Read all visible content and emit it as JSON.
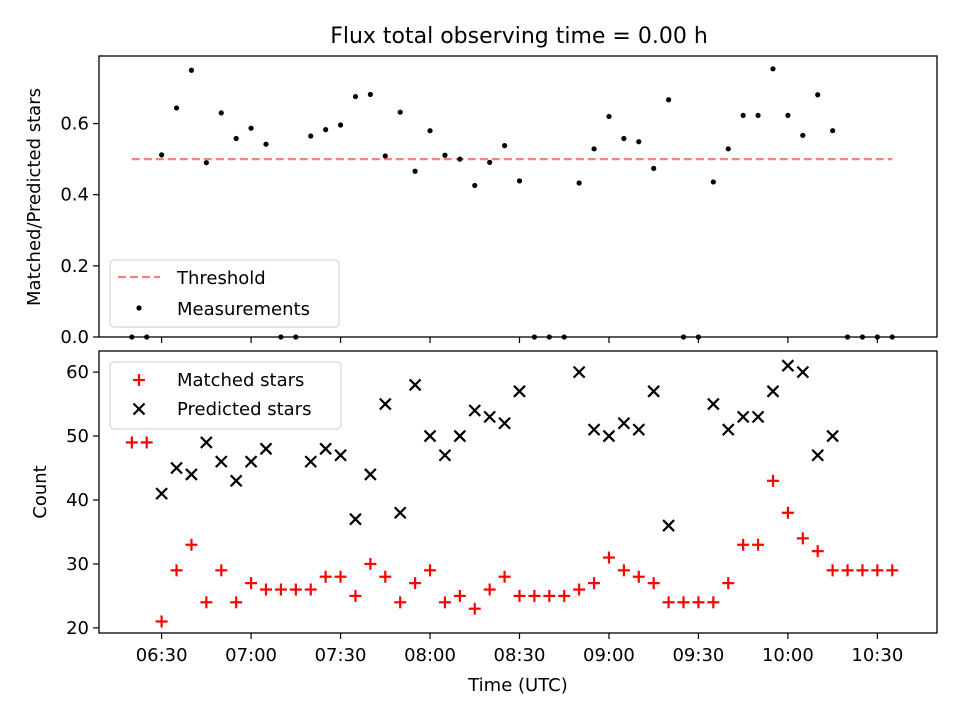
{
  "figure": {
    "title": "Flux total observing time = 0.00 h"
  },
  "colors": {
    "threshold": "#ff7f7f",
    "measurement": "#000000",
    "matched": "#ff0000",
    "predicted": "#000000"
  },
  "chart_data": [
    {
      "type": "scatter",
      "panel": "top",
      "title": "Flux total observing time = 0.00 h",
      "xlabel": "",
      "ylabel": "Matched/Predicted stars",
      "xlim": [
        "06:09",
        "10:50"
      ],
      "ylim": [
        0,
        0.79
      ],
      "yticks": [
        0.0,
        0.2,
        0.4,
        0.6
      ],
      "ytick_labels": [
        "0.0",
        "0.2",
        "0.4",
        "0.6"
      ],
      "legend_placement": "lower left",
      "series": [
        {
          "name": "Threshold",
          "kind": "dashed-line",
          "x": [
            "06:20",
            "10:35"
          ],
          "y": [
            0.5,
            0.5
          ]
        },
        {
          "name": "Measurements",
          "kind": "dots",
          "x": [
            "06:20",
            "06:25",
            "06:30",
            "06:35",
            "06:40",
            "06:45",
            "06:50",
            "06:55",
            "07:00",
            "07:05",
            "07:10",
            "07:15",
            "07:20",
            "07:25",
            "07:30",
            "07:35",
            "07:40",
            "07:45",
            "07:50",
            "07:55",
            "08:00",
            "08:05",
            "08:10",
            "08:15",
            "08:20",
            "08:25",
            "08:30",
            "08:35",
            "08:40",
            "08:45",
            "08:50",
            "08:55",
            "09:00",
            "09:05",
            "09:10",
            "09:15",
            "09:20",
            "09:25",
            "09:30",
            "09:35",
            "09:40",
            "09:45",
            "09:50",
            "09:55",
            "10:00",
            "10:05",
            "10:10",
            "10:15",
            "10:20",
            "10:25",
            "10:30",
            "10:35"
          ],
          "y": [
            0.0,
            0.0,
            0.512,
            0.644,
            0.75,
            0.49,
            0.63,
            0.558,
            0.587,
            0.542,
            0.0,
            0.0,
            0.565,
            0.583,
            0.596,
            0.676,
            0.682,
            0.509,
            0.632,
            0.466,
            0.58,
            0.511,
            0.5,
            0.426,
            0.491,
            0.538,
            0.439,
            0.0,
            0.0,
            0.0,
            0.433,
            0.529,
            0.62,
            0.558,
            0.549,
            0.474,
            0.667,
            0.0,
            0.0,
            0.436,
            0.529,
            0.623,
            0.623,
            0.754,
            0.623,
            0.567,
            0.681,
            0.58,
            0.0,
            0.0,
            0.0,
            0.0
          ]
        }
      ]
    },
    {
      "type": "scatter",
      "panel": "bottom",
      "xlabel": "Time (UTC)",
      "ylabel": "Count",
      "xlim": [
        "06:09",
        "10:50"
      ],
      "ylim": [
        19.2,
        63.3
      ],
      "xticks": [
        "06:30",
        "07:00",
        "07:30",
        "08:00",
        "08:30",
        "09:00",
        "09:30",
        "10:00",
        "10:30"
      ],
      "yticks": [
        20,
        30,
        40,
        50,
        60
      ],
      "legend_placement": "upper left",
      "series": [
        {
          "name": "Matched stars",
          "marker": "+",
          "x": [
            "06:20",
            "06:25",
            "06:30",
            "06:35",
            "06:40",
            "06:45",
            "06:50",
            "06:55",
            "07:00",
            "07:05",
            "07:10",
            "07:15",
            "07:20",
            "07:25",
            "07:30",
            "07:35",
            "07:40",
            "07:45",
            "07:50",
            "07:55",
            "08:00",
            "08:05",
            "08:10",
            "08:15",
            "08:20",
            "08:25",
            "08:30",
            "08:35",
            "08:40",
            "08:45",
            "08:50",
            "08:55",
            "09:00",
            "09:05",
            "09:10",
            "09:15",
            "09:20",
            "09:25",
            "09:30",
            "09:35",
            "09:40",
            "09:45",
            "09:50",
            "09:55",
            "10:00",
            "10:05",
            "10:10",
            "10:15",
            "10:20",
            "10:25",
            "10:30",
            "10:35"
          ],
          "y": [
            49,
            49,
            21,
            29,
            33,
            24,
            29,
            24,
            27,
            26,
            26,
            26,
            26,
            28,
            28,
            25,
            30,
            28,
            24,
            27,
            29,
            24,
            25,
            23,
            26,
            28,
            25,
            25,
            25,
            25,
            26,
            27,
            31,
            29,
            28,
            27,
            24,
            24,
            24,
            24,
            27,
            33,
            33,
            43,
            38,
            34,
            32,
            29,
            29,
            29,
            29,
            29
          ]
        },
        {
          "name": "Predicted stars",
          "marker": "x",
          "x": [
            "06:30",
            "06:35",
            "06:40",
            "06:45",
            "06:50",
            "06:55",
            "07:00",
            "07:05",
            "07:20",
            "07:25",
            "07:30",
            "07:35",
            "07:40",
            "07:45",
            "07:50",
            "07:55",
            "08:00",
            "08:05",
            "08:10",
            "08:15",
            "08:20",
            "08:25",
            "08:30",
            "08:50",
            "08:55",
            "09:00",
            "09:05",
            "09:10",
            "09:15",
            "09:20",
            "09:35",
            "09:40",
            "09:45",
            "09:50",
            "09:55",
            "10:00",
            "10:05",
            "10:10",
            "10:15"
          ],
          "y": [
            41,
            45,
            44,
            49,
            46,
            43,
            46,
            48,
            46,
            48,
            47,
            37,
            44,
            55,
            38,
            58,
            50,
            47,
            50,
            54,
            53,
            52,
            57,
            60,
            51,
            50,
            52,
            51,
            57,
            36,
            55,
            51,
            53,
            53,
            57,
            61,
            60,
            47,
            50
          ]
        }
      ]
    }
  ]
}
